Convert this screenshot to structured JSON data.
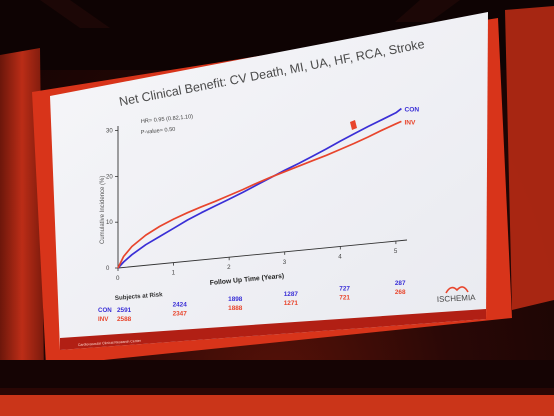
{
  "slide": {
    "title": "Net Clinical Benefit: CV Death, MI, UA, HF, RCA, Stroke",
    "footer_text": "Cardiovascular Clinical Research Center"
  },
  "stats": {
    "hr_text": "HR= 0.95 (0.82,1.10)",
    "p_text": "P-value= 0.50"
  },
  "axis": {
    "ylabel": "Cumulative Incidence (%)",
    "xlabel": "Follow Up Time (Years)",
    "yticks": [
      "0",
      "10",
      "20",
      "30"
    ],
    "xticks": [
      "0",
      "1",
      "2",
      "3",
      "4",
      "5"
    ]
  },
  "risk_table": {
    "heading": "Subjects at Risk",
    "rows": [
      {
        "label": "CON",
        "values": [
          "2591",
          "2424",
          "1898",
          "1287",
          "727",
          "287"
        ]
      },
      {
        "label": "INV",
        "values": [
          "2588",
          "2347",
          "1888",
          "1271",
          "721",
          "268"
        ]
      }
    ]
  },
  "logo": {
    "text": "ISCHEMIA"
  },
  "colors": {
    "con": "#3a2fd6",
    "inv": "#e8452c",
    "stage_red": "#d8341a",
    "slide_bg": "#f4f5f8"
  },
  "chart_data": {
    "type": "line",
    "title": "Net Clinical Benefit: CV Death, MI, UA, HF, RCA, Stroke",
    "xlabel": "Follow Up Time (Years)",
    "ylabel": "Cumulative Incidence (%)",
    "xlim": [
      0,
      5.2
    ],
    "ylim": [
      0,
      30
    ],
    "series": [
      {
        "name": "CON",
        "x": [
          0,
          0.1,
          0.25,
          0.5,
          0.75,
          1.0,
          1.25,
          1.5,
          1.75,
          2.0,
          2.25,
          2.5,
          2.75,
          3.0,
          3.25,
          3.5,
          3.75,
          4.0,
          4.25,
          4.5,
          4.75,
          5.0,
          5.1
        ],
        "y": [
          0,
          1.2,
          2.6,
          4.5,
          6.0,
          7.5,
          9.0,
          10.3,
          11.5,
          12.7,
          13.9,
          15.2,
          16.5,
          17.8,
          19.0,
          20.3,
          21.6,
          23.0,
          24.3,
          25.6,
          26.8,
          28.0,
          28.8
        ]
      },
      {
        "name": "INV",
        "x": [
          0,
          0.1,
          0.25,
          0.5,
          0.75,
          1.0,
          1.25,
          1.5,
          1.75,
          2.0,
          2.25,
          2.5,
          2.75,
          3.0,
          3.25,
          3.5,
          3.75,
          4.0,
          4.25,
          4.5,
          4.75,
          5.0,
          5.1
        ],
        "y": [
          0,
          2.4,
          4.4,
          6.6,
          8.2,
          9.5,
          10.6,
          11.6,
          12.5,
          13.5,
          14.5,
          15.6,
          16.6,
          17.5,
          18.4,
          19.3,
          20.2,
          21.2,
          22.2,
          23.3,
          24.5,
          25.6,
          26.0
        ]
      }
    ],
    "grid": false
  }
}
